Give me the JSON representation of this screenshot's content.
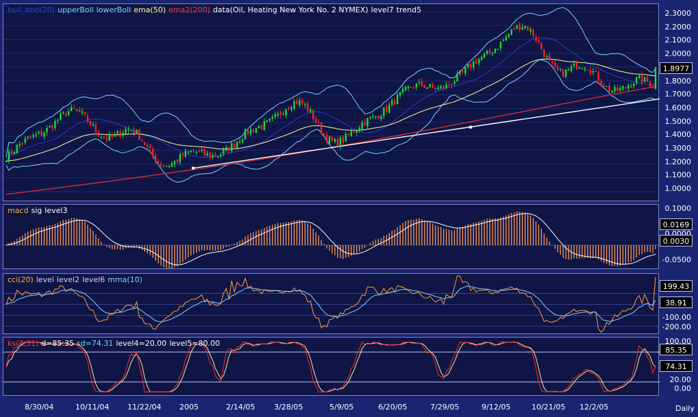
{
  "legend_main": [
    {
      "text": "bull_bnd(20)",
      "color": "#2f3bd6"
    },
    {
      "text": "upperBoll",
      "color": "#7fd3ff"
    },
    {
      "text": "lowerBoll",
      "color": "#7fd3ff"
    },
    {
      "text": "ema(50)",
      "color": "#ffff99"
    },
    {
      "text": "ema2(200)",
      "color": "#ff3b3b"
    },
    {
      "text": "data(Oil, Heating New York No. 2 NYMEX)",
      "color": "#ffffff"
    },
    {
      "text": "level7",
      "color": "#ffffff"
    },
    {
      "text": "trend5",
      "color": "#ffffff"
    }
  ],
  "legend_macd": [
    {
      "text": "macd",
      "color": "#ffb347"
    },
    {
      "text": "sig",
      "color": "#ffffff"
    },
    {
      "text": "level3",
      "color": "#ffffff"
    }
  ],
  "legend_cci": [
    {
      "text": "cci(20)",
      "color": "#ffb347"
    },
    {
      "text": "level",
      "color": "#cfd6ff"
    },
    {
      "text": "level2",
      "color": "#cfd6ff"
    },
    {
      "text": "level6",
      "color": "#cfd6ff"
    },
    {
      "text": "mma(10)",
      "color": "#7fd3ff"
    }
  ],
  "legend_stoch": [
    {
      "text": "ks(2,31)",
      "color": "#ff3b3b"
    },
    {
      "text": "d=85.35",
      "color": "#ffffff"
    },
    {
      "text": "sd=74.31",
      "color": "#7fd3ff"
    },
    {
      "text": "level4=20.00",
      "color": "#ffffff"
    },
    {
      "text": "level5=80.00",
      "color": "#ffffff"
    }
  ],
  "price_axis": [
    "2.3000",
    "2.2000",
    "2.1000",
    "2.0000",
    "1.9000",
    "1.8000",
    "1.7000",
    "1.6000",
    "1.5000",
    "1.4000",
    "1.3000",
    "1.2000",
    "1.1000",
    "1.0000"
  ],
  "price_box": "1.8977",
  "macd_axis": [
    "0.1000",
    "0.0000",
    "-0.0500"
  ],
  "macd_boxes": [
    "0.0169",
    "0.0030"
  ],
  "cci_axis": [
    "-100.00",
    "-200.00"
  ],
  "cci_boxes": [
    "199.43",
    "38.91"
  ],
  "stoch_axis": [
    "100.00",
    "20.00",
    "0.00"
  ],
  "stoch_boxes": [
    "85.35",
    "74.31"
  ],
  "x_labels": [
    "8/30/04",
    "10/11/04",
    "11/22/04",
    "2005",
    "2/14/05",
    "3/28/05",
    "5/9/05",
    "6/20/05",
    "7/29/05",
    "9/12/05",
    "10/21/05",
    "12/2/05"
  ],
  "period_label": "Daily",
  "chart_data": {
    "type": "candlestick",
    "series_name": "Oil, Heating New York No. 2 NYMEX",
    "ylim": [
      0.95,
      2.33
    ],
    "x": [
      "8/30/04",
      "10/11/04",
      "11/22/04",
      "2005",
      "2/14/05",
      "3/28/05",
      "5/9/05",
      "6/20/05",
      "7/29/05",
      "9/12/05",
      "10/21/05",
      "12/2/05"
    ],
    "close_approx": [
      1.25,
      1.55,
      1.42,
      1.22,
      1.33,
      1.62,
      1.38,
      1.7,
      1.82,
      2.17,
      1.88,
      1.76
    ],
    "last_close": 1.8977,
    "trend_line": {
      "start": [
        "2005",
        1.17
      ],
      "end": [
        "last",
        1.67
      ]
    }
  }
}
